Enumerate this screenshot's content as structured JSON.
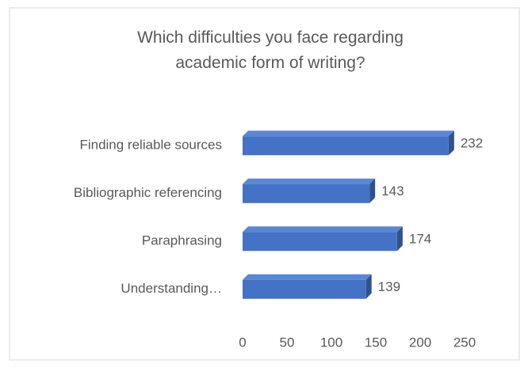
{
  "chart_data": {
    "type": "bar",
    "orientation": "horizontal",
    "title": "Which difficulties you face regarding academic form of writing?",
    "categories": [
      "Finding reliable sources",
      "Bibliographic referencing",
      "Paraphrasing",
      "Understanding…"
    ],
    "values": [
      232,
      143,
      174,
      139
    ],
    "color": "#4472c4",
    "xlim": [
      0,
      250
    ],
    "xticks": [
      0,
      50,
      100,
      150,
      200,
      250
    ],
    "grid": false
  }
}
